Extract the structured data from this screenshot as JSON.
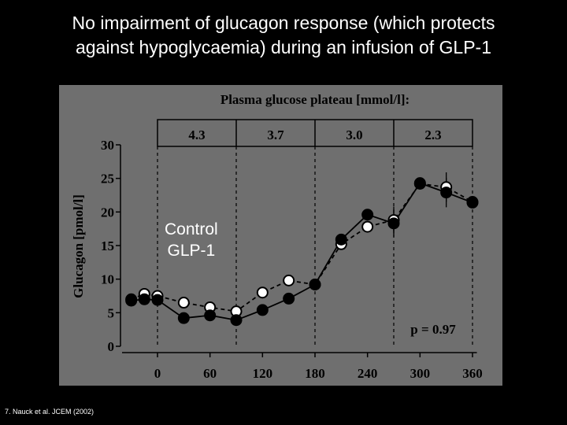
{
  "slide": {
    "title_line1": "No impairment of glucagon response (which protects",
    "title_line2": "against hypoglycaemia) during an infusion of GLP-1",
    "citation": "7. Nauck et al. JCEM (2002)"
  },
  "legend": {
    "control": "Control",
    "glp1": "GLP-1"
  },
  "colors": {
    "background": "#000000",
    "panel": "#6f6f6f",
    "ink": "#000000",
    "open_marker": "#ffffff",
    "text": "#ffffff"
  },
  "chart_data": {
    "type": "line",
    "title": "Plasma glucose plateau [mmol/l]:",
    "xlabel": "",
    "ylabel": "Glucagon [pmol/l]",
    "xlim": [
      -40,
      365
    ],
    "ylim": [
      0,
      30
    ],
    "x_ticks": [
      "0",
      "60",
      "120",
      "180",
      "240",
      "300",
      "360"
    ],
    "y_ticks": [
      "0",
      "5",
      "10",
      "15",
      "20",
      "25",
      "30"
    ],
    "plateaus": [
      {
        "label": "4.3",
        "from": 0,
        "to": 90
      },
      {
        "label": "3.7",
        "from": 90,
        "to": 180
      },
      {
        "label": "3.0",
        "from": 180,
        "to": 270
      },
      {
        "label": "2.3",
        "from": 270,
        "to": 360
      }
    ],
    "annotation": "p = 0.97",
    "series": [
      {
        "name": "Control",
        "marker": "open",
        "line": "dashed",
        "x": [
          -30,
          -15,
          0,
          30,
          60,
          90,
          120,
          150,
          180,
          210,
          240,
          270,
          300,
          330,
          360
        ],
        "y": [
          7.0,
          7.8,
          7.5,
          6.5,
          5.8,
          5.2,
          8.0,
          9.8,
          9.2,
          15.2,
          17.8,
          18.8,
          24.2,
          23.7,
          21.5
        ]
      },
      {
        "name": "GLP-1",
        "marker": "filled",
        "line": "solid",
        "x": [
          -30,
          -15,
          0,
          30,
          60,
          90,
          120,
          150,
          180,
          210,
          240,
          270,
          300,
          330,
          360
        ],
        "y": [
          6.8,
          7.0,
          6.9,
          4.2,
          4.6,
          3.9,
          5.4,
          7.1,
          9.2,
          15.9,
          19.6,
          18.3,
          24.3,
          22.9,
          21.4
        ]
      }
    ]
  }
}
